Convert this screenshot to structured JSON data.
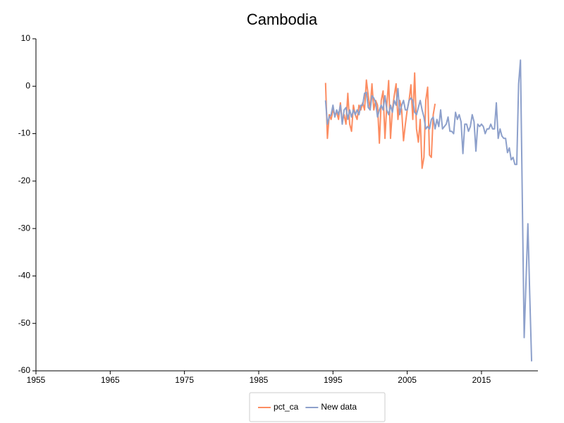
{
  "chart_data": {
    "type": "line",
    "title": "Cambodia",
    "x": [
      1994,
      1994.25,
      1994.5,
      1994.75,
      1995,
      1995.25,
      1995.5,
      1995.75,
      1996,
      1996.25,
      1996.5,
      1996.75,
      1997,
      1997.25,
      1997.5,
      1997.75,
      1998,
      1998.25,
      1998.5,
      1998.75,
      1999,
      1999.25,
      1999.5,
      1999.75,
      2000,
      2000.25,
      2000.5,
      2000.75,
      2001,
      2001.25,
      2001.5,
      2001.75,
      2002,
      2002.25,
      2002.5,
      2002.75,
      2003,
      2003.25,
      2003.5,
      2003.75,
      2004,
      2004.25,
      2004.5,
      2004.75,
      2005,
      2005.25,
      2005.5,
      2005.75,
      2006,
      2006.25,
      2006.5,
      2006.75,
      2007,
      2007.25,
      2007.5,
      2007.75,
      2008,
      2008.25,
      2008.5,
      2008.75,
      2009,
      2009.25,
      2009.5,
      2009.75,
      2010,
      2010.25,
      2010.5,
      2010.75,
      2011,
      2011.25,
      2011.5,
      2011.75,
      2012,
      2012.25,
      2012.5,
      2012.75,
      2013,
      2013.25,
      2013.5,
      2013.75,
      2014,
      2014.25,
      2014.5,
      2014.75,
      2015,
      2015.25,
      2015.5,
      2015.75,
      2016,
      2016.25,
      2016.5,
      2016.75,
      2017,
      2017.25,
      2017.5,
      2017.75,
      2018,
      2018.25,
      2018.5,
      2018.75,
      2019,
      2019.25,
      2019.5,
      2019.75,
      2020,
      2020.25,
      2020.5,
      2020.75,
      2021,
      2021.25,
      2021.5,
      2021.75
    ],
    "series": [
      {
        "name": "pct_ca",
        "color": "#fc8d62",
        "values": [
          0.7,
          -11,
          -6,
          -7,
          -5,
          -6,
          -5.5,
          -7,
          -3.5,
          -7.5,
          -6,
          -8,
          -1.5,
          -8,
          -9.5,
          -4,
          -6,
          -7,
          -4,
          -5,
          -3.5,
          -5,
          1.3,
          -2,
          -5,
          0.5,
          -5,
          -3,
          -4,
          -12,
          -3,
          -1,
          -11,
          -4,
          1.2,
          -11,
          -5,
          -2,
          0.5,
          -7,
          -3,
          -5,
          -11.5,
          -8,
          -5,
          -3,
          0.3,
          -7,
          2.8,
          -9,
          -11.8,
          -7,
          -17.3,
          -15,
          -3,
          -0.2,
          -14.5,
          -15,
          -6,
          -3.7,
          null,
          null,
          null,
          null,
          null,
          null,
          null,
          null,
          null,
          null,
          null,
          null,
          null,
          null,
          null,
          null,
          null,
          null,
          null,
          null,
          null,
          null,
          null,
          null,
          null,
          null,
          null,
          null,
          null,
          null,
          null,
          null,
          null,
          null,
          null,
          null,
          null,
          null,
          null,
          null,
          null,
          null,
          null,
          null,
          null,
          null,
          null,
          null,
          null,
          null,
          null,
          null
        ]
      },
      {
        "name": "New data",
        "color": "#8da0cb",
        "values": [
          -3,
          -8,
          -6.5,
          -6,
          -4,
          -6.5,
          -5,
          -6,
          -4,
          -8,
          -5,
          -4.5,
          -7,
          -5,
          -6.5,
          -5,
          -6,
          -5,
          -6,
          -4,
          -4,
          -1.5,
          -1.3,
          -4.5,
          -5,
          -2,
          -2.5,
          -3.5,
          -6.5,
          -5,
          -4,
          -5,
          -2,
          -5,
          -6,
          -4,
          -5.5,
          -3,
          -4,
          -0.5,
          -6,
          -4,
          -3,
          -5,
          -5,
          -3,
          -2.5,
          -3,
          -5.5,
          -6,
          -4.5,
          -3,
          -5,
          -6.5,
          -9,
          -8.5,
          -9,
          -7,
          -6.5,
          -9,
          -7,
          -8.5,
          -5,
          -9,
          -8.5,
          -8,
          -6.5,
          -9.5,
          -9.5,
          -10,
          -5.5,
          -7,
          -6,
          -7.5,
          -14.2,
          -8,
          -8,
          -9.5,
          -8.5,
          -6,
          -7.5,
          -13.7,
          -8,
          -8.5,
          -8,
          -8.5,
          -10,
          -9,
          -9,
          -8,
          -9,
          -9,
          -3.5,
          -11,
          -9,
          -10.5,
          -11,
          -11,
          -14,
          -13,
          -15.5,
          -15,
          -16.5,
          -16.5,
          0.5,
          5.5,
          -24,
          -53,
          -41,
          -29,
          -44,
          -58
        ]
      }
    ],
    "xlim": [
      1955,
      2022.6
    ],
    "ylim": [
      -60,
      10
    ],
    "xticks": [
      1955,
      1965,
      1975,
      1985,
      1995,
      2005,
      2015
    ],
    "yticks": [
      -60,
      -50,
      -40,
      -30,
      -20,
      -10,
      0,
      10
    ],
    "legend": "bottom"
  }
}
